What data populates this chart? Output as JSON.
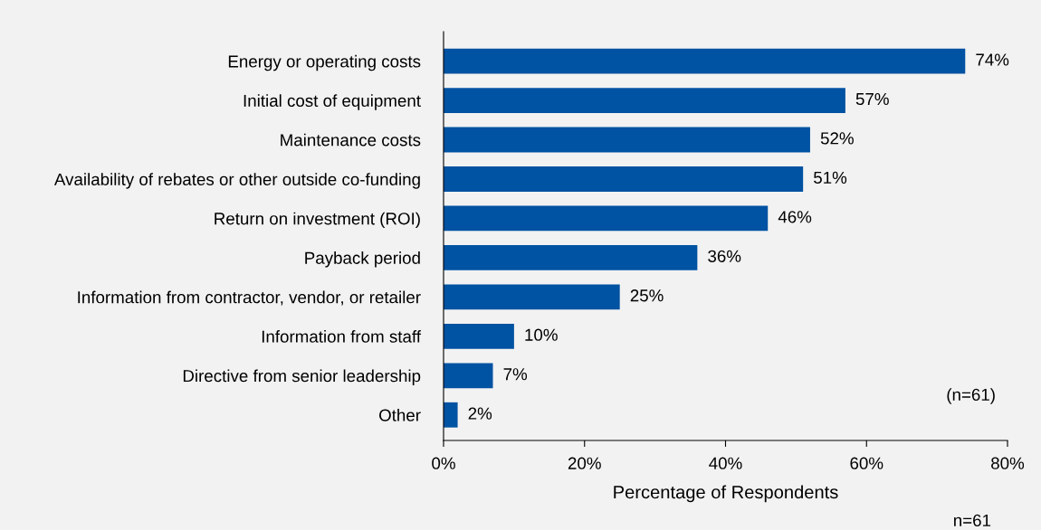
{
  "chart_data": {
    "type": "bar",
    "orientation": "horizontal",
    "xlabel": "Percentage of Respondents",
    "categories": [
      "Energy or operating costs",
      "Initial cost of equipment",
      "Maintenance costs",
      "Availability of rebates or other outside co-funding",
      "Return on investment (ROI)",
      "Payback period",
      "Information from contractor, vendor, or retailer",
      "Information from staff",
      "Directive from senior leadership",
      "Other"
    ],
    "values": [
      74,
      57,
      52,
      51,
      46,
      36,
      25,
      10,
      7,
      2
    ],
    "value_labels": [
      "74%",
      "57%",
      "52%",
      "51%",
      "46%",
      "36%",
      "25%",
      "10%",
      "7%",
      "2%"
    ],
    "color": "#0052a2",
    "xlim": [
      0,
      80
    ],
    "xticks": [
      {
        "value": 0,
        "label": "0%"
      },
      {
        "value": 20,
        "label": "20%"
      },
      {
        "value": 40,
        "label": "40%"
      },
      {
        "value": 60,
        "label": "60%"
      },
      {
        "value": 80,
        "label": "80%"
      }
    ],
    "grid": false,
    "legend": false,
    "annotations": [
      "(n=61)",
      "n=61"
    ]
  }
}
